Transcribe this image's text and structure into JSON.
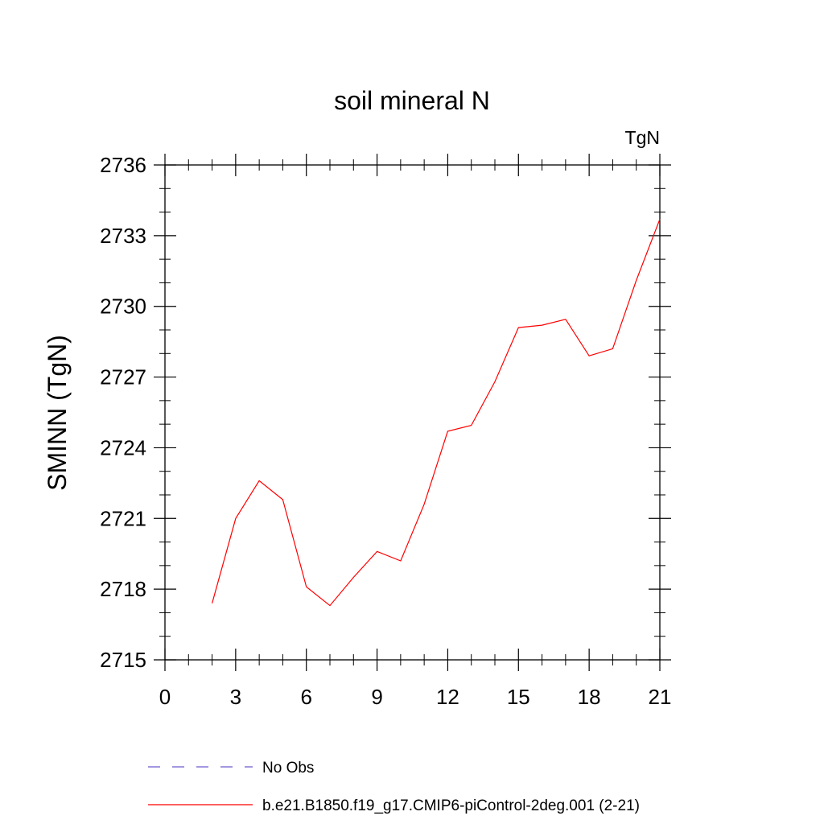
{
  "chart_data": {
    "type": "line",
    "title": "soil mineral N",
    "units_label": "TgN",
    "xlabel": "",
    "ylabel": "SMINN  (TgN)",
    "xlim": [
      0,
      21
    ],
    "ylim": [
      2715,
      2736
    ],
    "x_ticks": [
      0,
      3,
      6,
      9,
      12,
      15,
      18,
      21
    ],
    "y_ticks": [
      2715,
      2718,
      2721,
      2724,
      2727,
      2730,
      2733,
      2736
    ],
    "grid": false,
    "legend_position": "bottom",
    "series": [
      {
        "name": "b.e21.B1850.f19_g17.CMIP6-piControl-2deg.001 (2-21)",
        "color": "#ff0000",
        "dash": "solid",
        "x": [
          2,
          3,
          4,
          5,
          6,
          7,
          8,
          9,
          10,
          11,
          12,
          13,
          14,
          15,
          16,
          17,
          18,
          19,
          20,
          21
        ],
        "y": [
          2717.4,
          2721.0,
          2722.6,
          2721.8,
          2718.1,
          2717.3,
          2718.5,
          2719.6,
          2719.2,
          2721.6,
          2724.7,
          2724.95,
          2726.8,
          2729.1,
          2729.2,
          2729.45,
          2727.9,
          2728.2,
          2731.1,
          2733.7
        ]
      }
    ],
    "legend": [
      {
        "label": "No Obs",
        "color": "#6a5acd",
        "dash": "dashed"
      },
      {
        "label": "b.e21.B1850.f19_g17.CMIP6-piControl-2deg.001 (2-21)",
        "color": "#ff0000",
        "dash": "solid"
      }
    ]
  }
}
